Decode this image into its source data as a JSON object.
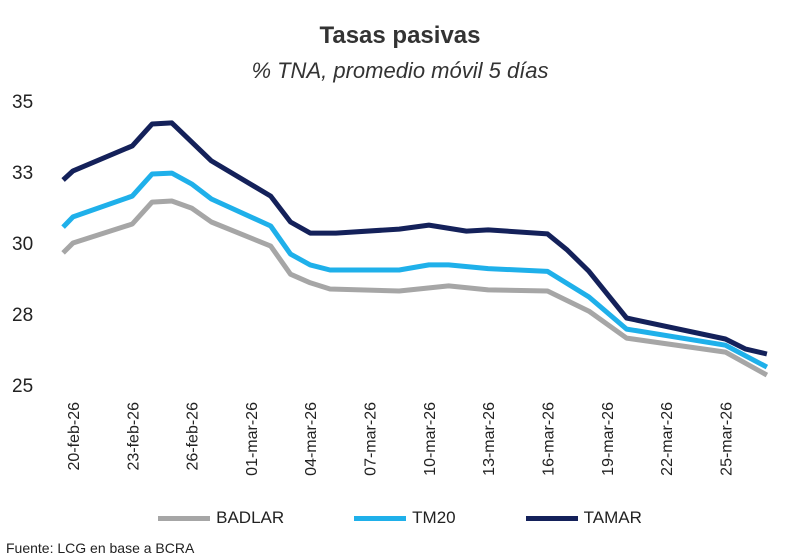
{
  "chart_data": {
    "type": "line",
    "title": "Tasas pasivas",
    "subtitle": "% TNA, promedio móvil 5 días",
    "xlabel": "",
    "ylabel": "",
    "x_units": "days since 20-feb-26",
    "ylim": [
      25,
      35
    ],
    "yticks": [
      25,
      27.5,
      30,
      32.5,
      35
    ],
    "ytick_labels": [
      "25",
      "28",
      "30",
      "33",
      "35"
    ],
    "xlim": [
      -0.5,
      35.1
    ],
    "xticks": [
      0,
      3,
      6,
      9,
      12,
      15,
      18,
      21,
      24,
      27,
      30,
      33
    ],
    "xtick_labels": [
      "20-feb-26",
      "23-feb-26",
      "26-feb-26",
      "01-mar-26",
      "04-mar-26",
      "07-mar-26",
      "10-mar-26",
      "13-mar-26",
      "16-mar-26",
      "19-mar-26",
      "22-mar-26",
      "25-mar-26"
    ],
    "grid": false,
    "legend_position": "bottom",
    "series": [
      {
        "name": "BADLAR",
        "color": "#a6a6a6",
        "x": [
          -0.5,
          0,
          3,
          4,
          5,
          6,
          7,
          10,
          11,
          12,
          13,
          16.5,
          19,
          21,
          24,
          26.1,
          28,
          33,
          35.1
        ],
        "y": [
          29.65,
          30.0,
          30.67,
          31.44,
          31.48,
          31.23,
          30.74,
          29.89,
          28.9,
          28.6,
          28.38,
          28.31,
          28.49,
          28.35,
          28.31,
          27.6,
          26.65,
          26.16,
          25.35
        ]
      },
      {
        "name": "TM20",
        "color": "#1fb0ea",
        "x": [
          -0.5,
          0,
          3,
          4,
          5,
          6,
          7,
          10,
          11,
          12,
          13,
          16.5,
          18,
          19,
          21,
          24,
          26.1,
          28,
          33,
          35.1
        ],
        "y": [
          30.56,
          30.92,
          31.65,
          32.43,
          32.46,
          32.08,
          31.55,
          30.6,
          29.61,
          29.23,
          29.05,
          29.05,
          29.23,
          29.23,
          29.1,
          29.0,
          28.1,
          26.97,
          26.4,
          25.63
        ]
      },
      {
        "name": "TAMAR",
        "color": "#14215a",
        "x": [
          -0.5,
          0,
          3,
          4,
          5,
          7,
          10,
          11,
          12,
          13.3,
          16.5,
          18,
          19.9,
          21,
          24,
          25,
          26.1,
          28,
          33,
          34,
          35.1
        ],
        "y": [
          32.22,
          32.54,
          33.42,
          34.19,
          34.23,
          32.89,
          31.65,
          30.74,
          30.35,
          30.35,
          30.49,
          30.63,
          30.42,
          30.46,
          30.32,
          29.75,
          29.0,
          27.36,
          26.62,
          26.27,
          26.09
        ]
      }
    ]
  },
  "source": "Fuente: LCG en base a BCRA"
}
